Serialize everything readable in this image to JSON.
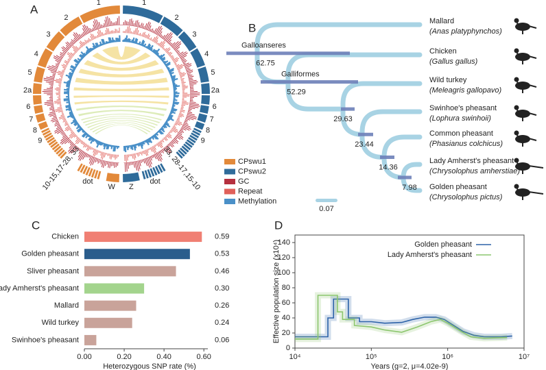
{
  "panel_a": {
    "panel": "A",
    "left_labels": [
      "1",
      "2",
      "3",
      "4",
      "5",
      "2a",
      "6",
      "7",
      "8",
      "9",
      "10-15,17-28, 33",
      "dot",
      "W"
    ],
    "right_labels": [
      "1",
      "2",
      "3",
      "4",
      "5",
      "2a",
      "6",
      "7",
      "8",
      "9",
      "33, 28-17,15-10",
      "dot",
      "Z"
    ],
    "legend": [
      {
        "name": "CPswu1",
        "color": "#e2893a"
      },
      {
        "name": "CPswu2",
        "color": "#2f6b9a"
      },
      {
        "name": "GC",
        "color": "#b5303f"
      },
      {
        "name": "Repeat",
        "color": "#e0605a"
      },
      {
        "name": "Methylation",
        "color": "#4a90c8"
      }
    ]
  },
  "panel_b": {
    "panel": "B",
    "tips": [
      {
        "name": "Mallard",
        "latin": "(Anas platyphynchos)"
      },
      {
        "name": "Chicken",
        "latin": "(Gallus gallus)"
      },
      {
        "name": "Wild turkey",
        "latin": "(Meleagris gallopavo)"
      },
      {
        "name": "Swinhoe's pheasant",
        "latin": "(Lophura swinhoii)"
      },
      {
        "name": "Common pheasant",
        "latin": "(Phasianus colchicus)"
      },
      {
        "name": "Lady Amherst's pheasant",
        "latin": "(Chrysolophus amherstiae)"
      },
      {
        "name": "Golden pheasant",
        "latin": "(Chrysolophus pictus)"
      }
    ],
    "nodes": [
      {
        "name": "Galloanseres",
        "age": 62.75
      },
      {
        "name": "Galliformes",
        "age": 52.29
      },
      {
        "age": 29.63
      },
      {
        "age": 23.44
      },
      {
        "age": 14.36
      },
      {
        "age": 7.98
      }
    ],
    "scale": 0.07
  },
  "chart_data": [
    {
      "type": "barh",
      "panel": "C",
      "xlabel": "Heterozygous SNP rate (%)",
      "categories": [
        "Chicken",
        "Golden pheasant",
        "Sliver pheasant",
        "Lady Amherst's pheasant",
        "Mallard",
        "Wild turkey",
        "Swinhoe's pheasant"
      ],
      "values": [
        0.59,
        0.53,
        0.46,
        0.3,
        0.26,
        0.24,
        0.06
      ],
      "value_labels": [
        "0.59",
        "0.53",
        "0.46",
        "0.30",
        "0.26",
        "0.24",
        "0.06"
      ],
      "colors": [
        "#f07f73",
        "#2a5d8c",
        "#c9a39a",
        "#a3d48d",
        "#c9a39a",
        "#c9a39a",
        "#c9a39a"
      ],
      "xlim": [
        0,
        0.62
      ],
      "xticks": [
        {
          "value": 0,
          "label": "0.00"
        },
        {
          "value": 0.2,
          "label": "0.20"
        },
        {
          "value": 0.4,
          "label": "0.40"
        },
        {
          "value": 0.6,
          "label": "0.60"
        }
      ]
    },
    {
      "type": "line",
      "panel": "D",
      "log_x": true,
      "legend": "upper right",
      "xlabel": "Years (g=2, μ=4.02e-9)",
      "ylabel": "Effective population size (x10⁴)",
      "xlim": [
        10000,
        10000000
      ],
      "xticks": [
        {
          "value": 10000,
          "label": "10⁴"
        },
        {
          "value": 100000,
          "label": "10⁵"
        },
        {
          "value": 1000000,
          "label": "10⁶"
        },
        {
          "value": 10000000,
          "label": "10⁷"
        }
      ],
      "ylim": [
        0,
        150
      ],
      "yticks": [
        0,
        20,
        40,
        60,
        80,
        100,
        120,
        140
      ],
      "series": [
        {
          "name": "Golden pheasant",
          "color": "#2c62a8",
          "x": [
            10000,
            27000,
            27000,
            32000,
            32000,
            50000,
            50000,
            70000,
            70000,
            100000,
            150000,
            250000,
            350000,
            500000,
            700000,
            900000,
            1200000,
            1600000,
            2200000,
            3000000,
            5000000,
            7000000
          ],
          "values": [
            15,
            15,
            40,
            40,
            65,
            65,
            40,
            40,
            35,
            35,
            33,
            34,
            38,
            41,
            41,
            38,
            30,
            22,
            17,
            15,
            15,
            16
          ]
        },
        {
          "name": "Lady Amherst's pheasant",
          "color": "#8cc66e",
          "x": [
            10000,
            20000,
            20000,
            36000,
            36000,
            42000,
            42000,
            60000,
            60000,
            100000,
            150000,
            250000,
            400000,
            600000,
            800000,
            1000000,
            1500000,
            2000000,
            3000000,
            6000000
          ],
          "values": [
            12,
            12,
            70,
            70,
            48,
            48,
            38,
            38,
            30,
            28,
            24,
            21,
            28,
            35,
            38,
            33,
            22,
            15,
            13,
            14
          ]
        }
      ]
    }
  ]
}
